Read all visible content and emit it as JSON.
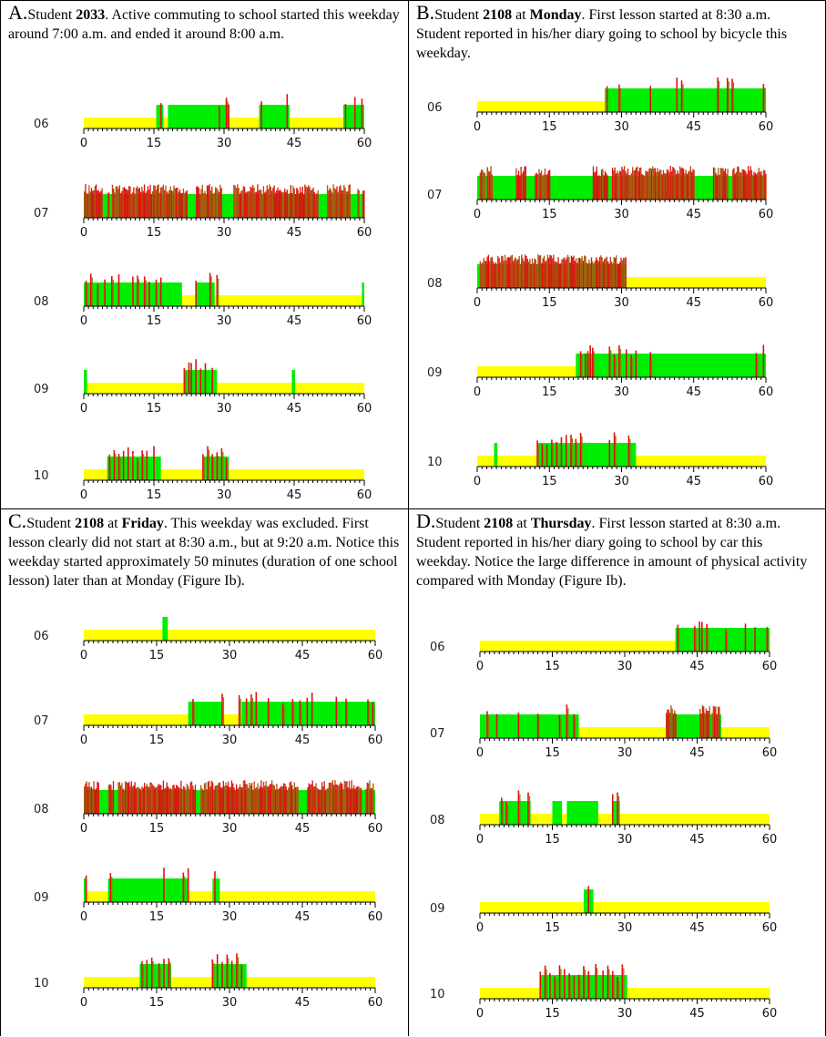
{
  "figure": {
    "panels": [
      {
        "letter": "A.",
        "caption": [
          {
            "t": "Student "
          },
          {
            "t": "2033",
            "b": true
          },
          {
            "t": ". Active commuting to school started this weekday around 7:00 a.m. and ended it around 8:00 a.m."
          }
        ]
      },
      {
        "letter": "B.",
        "caption": [
          {
            "t": "Student "
          },
          {
            "t": "2108",
            "b": true
          },
          {
            "t": " at "
          },
          {
            "t": "Monday",
            "b": true
          },
          {
            "t": ". First lesson started at 8:30 a.m. Student reported in his/her diary going to school by bicycle this weekday."
          }
        ]
      },
      {
        "letter": "C.",
        "caption": [
          {
            "t": "Student "
          },
          {
            "t": "2108",
            "b": true
          },
          {
            "t": " at "
          },
          {
            "t": "Friday",
            "b": true
          },
          {
            "t": ". This weekday was excluded. First lesson clearly did not start at 8:30 a.m., but at 9:20 a.m. Notice this weekday started approximately 50 minutes (duration of one school lesson) later than at Monday (Figure Ib)."
          }
        ]
      },
      {
        "letter": "D.",
        "caption": [
          {
            "t": "Student "
          },
          {
            "t": "2108",
            "b": true
          },
          {
            "t": " at "
          },
          {
            "t": "Thursday",
            "b": true
          },
          {
            "t": ". First lesson started at 8:30 a.m. Student reported in his/her diary going to school by car this weekday. Notice the large difference in amount of physical activity compared with Monday (Figure Ib)."
          }
        ]
      }
    ]
  },
  "chart_data": {
    "type": "bar",
    "x_ticks": [
      0,
      15,
      30,
      45,
      60
    ],
    "xlim": [
      0,
      60
    ],
    "xlabel": "",
    "ylabel": "",
    "level_legend": {
      "sedentary": "#ffff00",
      "light": "#00ee00",
      "vigorous": "#e01010"
    },
    "panels": [
      {
        "id": "A",
        "rows": [
          {
            "hour": "06",
            "green": [
              [
                15.5,
                17
              ],
              [
                18,
                31
              ],
              [
                37.5,
                44
              ],
              [
                55.5,
                60
              ]
            ],
            "red": [
              16.5,
              29,
              30.5,
              31,
              38,
              43.5,
              56,
              58,
              59.5
            ]
          },
          {
            "hour": "07",
            "green": [
              [
                0,
                60
              ]
            ],
            "red": [
              [
                0,
                4
              ],
              [
                5,
                5.5
              ],
              [
                6,
                22
              ],
              [
                24,
                29.5
              ],
              [
                32,
                50
              ],
              [
                52,
                57
              ],
              [
                58.5,
                59
              ],
              [
                59.6,
                60
              ]
            ],
            "mode": "dense"
          },
          {
            "hour": "08",
            "green": [
              [
                0,
                21
              ],
              [
                24,
                28
              ],
              [
                59.5,
                60
              ]
            ],
            "red": [
              0.5,
              1.5,
              3,
              4.5,
              6,
              7.5,
              10.5,
              11.5,
              13,
              14,
              15.5,
              16.5,
              24,
              27,
              28.5
            ]
          },
          {
            "hour": "09",
            "green": [
              [
                0,
                0.7
              ],
              [
                21.5,
                28.5
              ],
              [
                44.5,
                45.2
              ]
            ],
            "red": [
              21.5,
              22.5,
              23,
              24,
              25,
              26,
              27.5
            ]
          },
          {
            "hour": "10",
            "green": [
              [
                5,
                16.5
              ],
              [
                25.5,
                31
              ]
            ],
            "red": [
              5.5,
              6.5,
              7.5,
              8.5,
              9.5,
              10.5,
              11.5,
              12.5,
              13.5,
              15,
              25.5,
              26.5,
              27.5,
              28.5,
              29.5,
              30.5
            ]
          }
        ]
      },
      {
        "id": "B",
        "rows": [
          {
            "hour": "06",
            "green": [
              [
                26.5,
                60
              ]
            ],
            "red": [
              27,
              29.5,
              36,
              41.5,
              42.5,
              50,
              52,
              53,
              59.5
            ]
          },
          {
            "hour": "07",
            "green": [
              [
                0,
                60
              ]
            ],
            "red": [
              [
                0.5,
                1.5
              ],
              [
                2,
                3
              ],
              [
                8,
                10
              ],
              [
                12,
                15
              ],
              [
                24,
                27
              ],
              [
                28,
                45
              ],
              [
                49,
                52
              ],
              [
                53,
                60
              ]
            ],
            "mode": "dense"
          },
          {
            "hour": "08",
            "green": [
              [
                0,
                31
              ]
            ],
            "red": [
              [
                0.5,
                31
              ]
            ],
            "mode": "dense"
          },
          {
            "hour": "09",
            "green": [
              [
                20.5,
                60
              ]
            ],
            "red": [
              21.5,
              22.5,
              23,
              23.5,
              24,
              27.5,
              28.5,
              29.5,
              31,
              32,
              33,
              36,
              58,
              59.5
            ]
          },
          {
            "hour": "10",
            "green": [
              [
                3.5,
                4.2
              ],
              [
                12.5,
                33
              ]
            ],
            "red": [
              12.5,
              13.5,
              14.5,
              15.5,
              16.5,
              17.5,
              18.5,
              19.5,
              20.5,
              21.5,
              27.5,
              28.5,
              31.5
            ]
          }
        ]
      },
      {
        "id": "C",
        "rows": [
          {
            "hour": "06",
            "green": [
              [
                16.2,
                17.3
              ]
            ],
            "red": []
          },
          {
            "hour": "07",
            "green": [
              [
                21.5,
                28.5
              ],
              [
                32.5,
                60
              ]
            ],
            "red": [
              22.5,
              28.5,
              32,
              33.5,
              34.5,
              35.5,
              38,
              41,
              43,
              44.5,
              46,
              47,
              52,
              54,
              58.5,
              59.5
            ]
          },
          {
            "hour": "08",
            "green": [
              [
                0,
                60
              ]
            ],
            "red": [
              [
                0,
                3
              ],
              [
                5,
                6
              ],
              [
                7,
                23
              ],
              [
                24,
                44
              ],
              [
                46,
                57
              ],
              [
                58,
                59.5
              ]
            ],
            "mode": "dense"
          },
          {
            "hour": "09",
            "green": [
              [
                0,
                0.6
              ],
              [
                5,
                21.5
              ],
              [
                26.5,
                28
              ]
            ],
            "red": [
              0.5,
              5.5,
              16.5,
              20.5,
              21.5,
              27
            ]
          },
          {
            "hour": "10",
            "green": [
              [
                11.5,
                18
              ],
              [
                26.5,
                33.5
              ]
            ],
            "red": [
              12,
              13,
              14,
              15.5,
              16.5,
              17.5,
              26.5,
              27.5,
              28.5,
              29.5,
              30.5,
              31.5,
              32.5
            ]
          }
        ]
      },
      {
        "id": "D",
        "rows": [
          {
            "hour": "06",
            "green": [
              [
                40.5,
                60
              ]
            ],
            "red": [
              41,
              44.5,
              45.5,
              46,
              47,
              51,
              55,
              57,
              59.5
            ]
          },
          {
            "hour": "07",
            "green": [
              [
                0,
                20.5
              ],
              [
                38.5,
                50
              ]
            ],
            "red": [
              1.5,
              3.5,
              8,
              12,
              16.5,
              18,
              19.5,
              [
                38.5,
                40.5
              ],
              [
                45.5,
                47.5
              ],
              [
                48,
                49.5
              ]
            ]
          },
          {
            "hour": "08",
            "green": [
              [
                4,
                10.5
              ],
              [
                15,
                17
              ],
              [
                18,
                24.5
              ],
              [
                27.5,
                29
              ]
            ],
            "red": [
              4.5,
              5.5,
              8,
              10,
              27.5,
              28.5
            ]
          },
          {
            "hour": "09",
            "green": [
              [
                21.5,
                23.5
              ]
            ],
            "red": [
              22.5
            ]
          },
          {
            "hour": "10",
            "green": [
              [
                12.5,
                30.5
              ]
            ],
            "red": [
              12.5,
              13.5,
              14.5,
              15.5,
              16.5,
              17.5,
              18.5,
              19.5,
              20.5,
              21.5,
              22.5,
              24,
              25.5,
              26.5,
              27.5,
              28.5,
              29.5
            ]
          }
        ]
      }
    ]
  }
}
